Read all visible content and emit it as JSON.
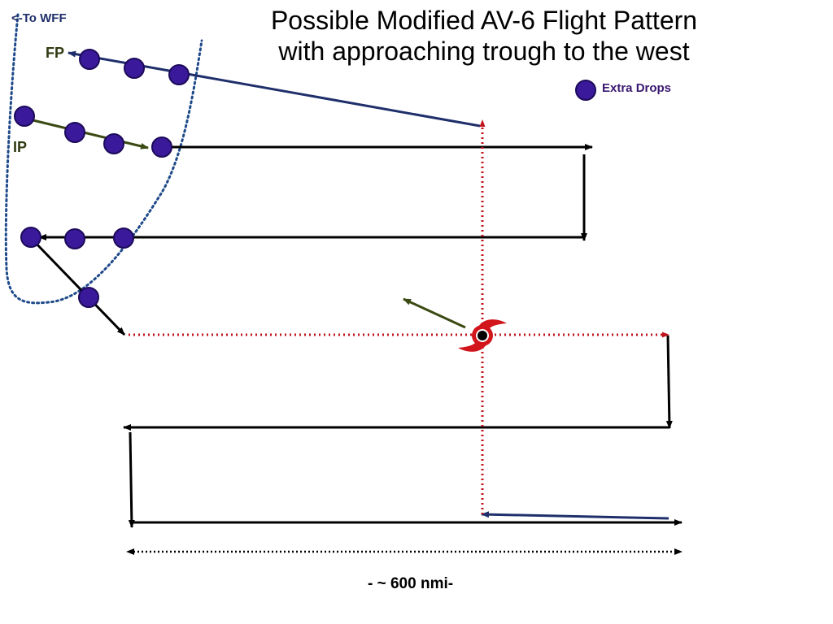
{
  "title": {
    "line1": "Possible Modified AV-6 Flight Pattern",
    "line2": "with approaching trough to the west"
  },
  "labels": {
    "to_wff": "<-To WFF",
    "fp": "FP",
    "ip": "IP",
    "scale": "- ~ 600 nmi-"
  },
  "legend": {
    "extra_drops": "Extra Drops"
  },
  "colors": {
    "drop_fill": "#3a1a9a",
    "drop_stroke": "#1c0a5a",
    "track": "#000000",
    "ferry": "#1f2f6b",
    "trough": "#1f4a8a",
    "crosshair": "#c0141b",
    "motion": "#3b4a12",
    "storm": "#d2141b"
  },
  "icons": {
    "storm": "hurricane-icon",
    "drop": "dropsonde-dot-icon"
  }
}
